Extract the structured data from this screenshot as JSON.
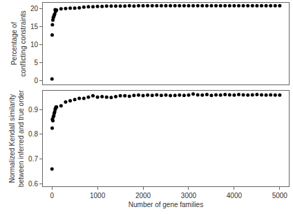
{
  "chart_data": [
    {
      "type": "scatter",
      "ylabel": "Percentage of\nconflicting constraints",
      "color": "#000000",
      "marker": "circle",
      "tick_labels": "y",
      "x": [
        1,
        5,
        10,
        20,
        30,
        40,
        50,
        60,
        70,
        80,
        90,
        100,
        200,
        300,
        400,
        500,
        600,
        700,
        800,
        900,
        1000,
        1100,
        1200,
        1300,
        1400,
        1500,
        1600,
        1700,
        1800,
        1900,
        2000,
        2100,
        2200,
        2300,
        2400,
        2500,
        2600,
        2700,
        2800,
        2900,
        3000,
        3100,
        3200,
        3300,
        3400,
        3500,
        3600,
        3700,
        3800,
        3900,
        4000,
        4100,
        4200,
        4300,
        4400,
        4500,
        4600,
        4700,
        4800,
        4900,
        5000
      ],
      "values": [
        0.5,
        12.7,
        15.5,
        16.8,
        17.5,
        17.8,
        18.2,
        18.5,
        19.7,
        19.2,
        19.5,
        19.6,
        19.9,
        20.0,
        20.1,
        20.1,
        20.2,
        20.4,
        20.5,
        20.5,
        20.6,
        20.6,
        20.7,
        20.7,
        20.7,
        20.7,
        20.7,
        20.8,
        20.7,
        20.8,
        20.8,
        20.8,
        20.8,
        20.8,
        20.8,
        20.8,
        20.8,
        20.8,
        20.8,
        20.8,
        20.8,
        20.8,
        20.8,
        20.8,
        20.8,
        20.8,
        20.8,
        20.8,
        20.8,
        20.8,
        20.8,
        20.8,
        20.8,
        20.8,
        20.8,
        20.8,
        20.8,
        20.8,
        20.8,
        20.8,
        20.8
      ],
      "xlim": [
        -200,
        5200
      ],
      "ylim": [
        -1,
        21.6
      ],
      "yticks": [
        0,
        5,
        10,
        15,
        20
      ]
    },
    {
      "type": "scatter",
      "ylabel": "Normalized Kendall similarity\nbetween inferred and true order",
      "xlabel": "Number of gene families",
      "color": "#000000",
      "marker": "circle",
      "x": [
        1,
        5,
        10,
        20,
        30,
        40,
        50,
        60,
        70,
        80,
        90,
        100,
        200,
        300,
        400,
        500,
        600,
        700,
        800,
        900,
        1000,
        1100,
        1200,
        1300,
        1400,
        1500,
        1600,
        1700,
        1800,
        1900,
        2000,
        2100,
        2200,
        2300,
        2400,
        2500,
        2600,
        2700,
        2800,
        2900,
        3000,
        3100,
        3200,
        3300,
        3400,
        3500,
        3600,
        3700,
        3800,
        3900,
        4000,
        4100,
        4200,
        4300,
        4400,
        4500,
        4600,
        4700,
        4800,
        4900,
        5000
      ],
      "values": [
        0.66,
        0.825,
        0.86,
        0.855,
        0.87,
        0.875,
        0.885,
        0.89,
        0.9,
        0.905,
        0.91,
        0.91,
        0.915,
        0.93,
        0.935,
        0.94,
        0.945,
        0.945,
        0.95,
        0.955,
        0.95,
        0.952,
        0.95,
        0.948,
        0.952,
        0.955,
        0.955,
        0.953,
        0.957,
        0.958,
        0.956,
        0.958,
        0.957,
        0.959,
        0.957,
        0.958,
        0.956,
        0.957,
        0.958,
        0.957,
        0.958,
        0.962,
        0.959,
        0.958,
        0.96,
        0.957,
        0.959,
        0.958,
        0.96,
        0.959,
        0.958,
        0.96,
        0.959,
        0.958,
        0.959,
        0.96,
        0.959,
        0.958,
        0.959,
        0.958,
        0.958
      ],
      "xlim": [
        -200,
        5200
      ],
      "ylim": [
        0.59,
        0.975
      ],
      "yticks": [
        0.6,
        0.7,
        0.8,
        0.9
      ],
      "xticks": [
        0,
        1000,
        2000,
        3000,
        4000,
        5000
      ]
    }
  ]
}
